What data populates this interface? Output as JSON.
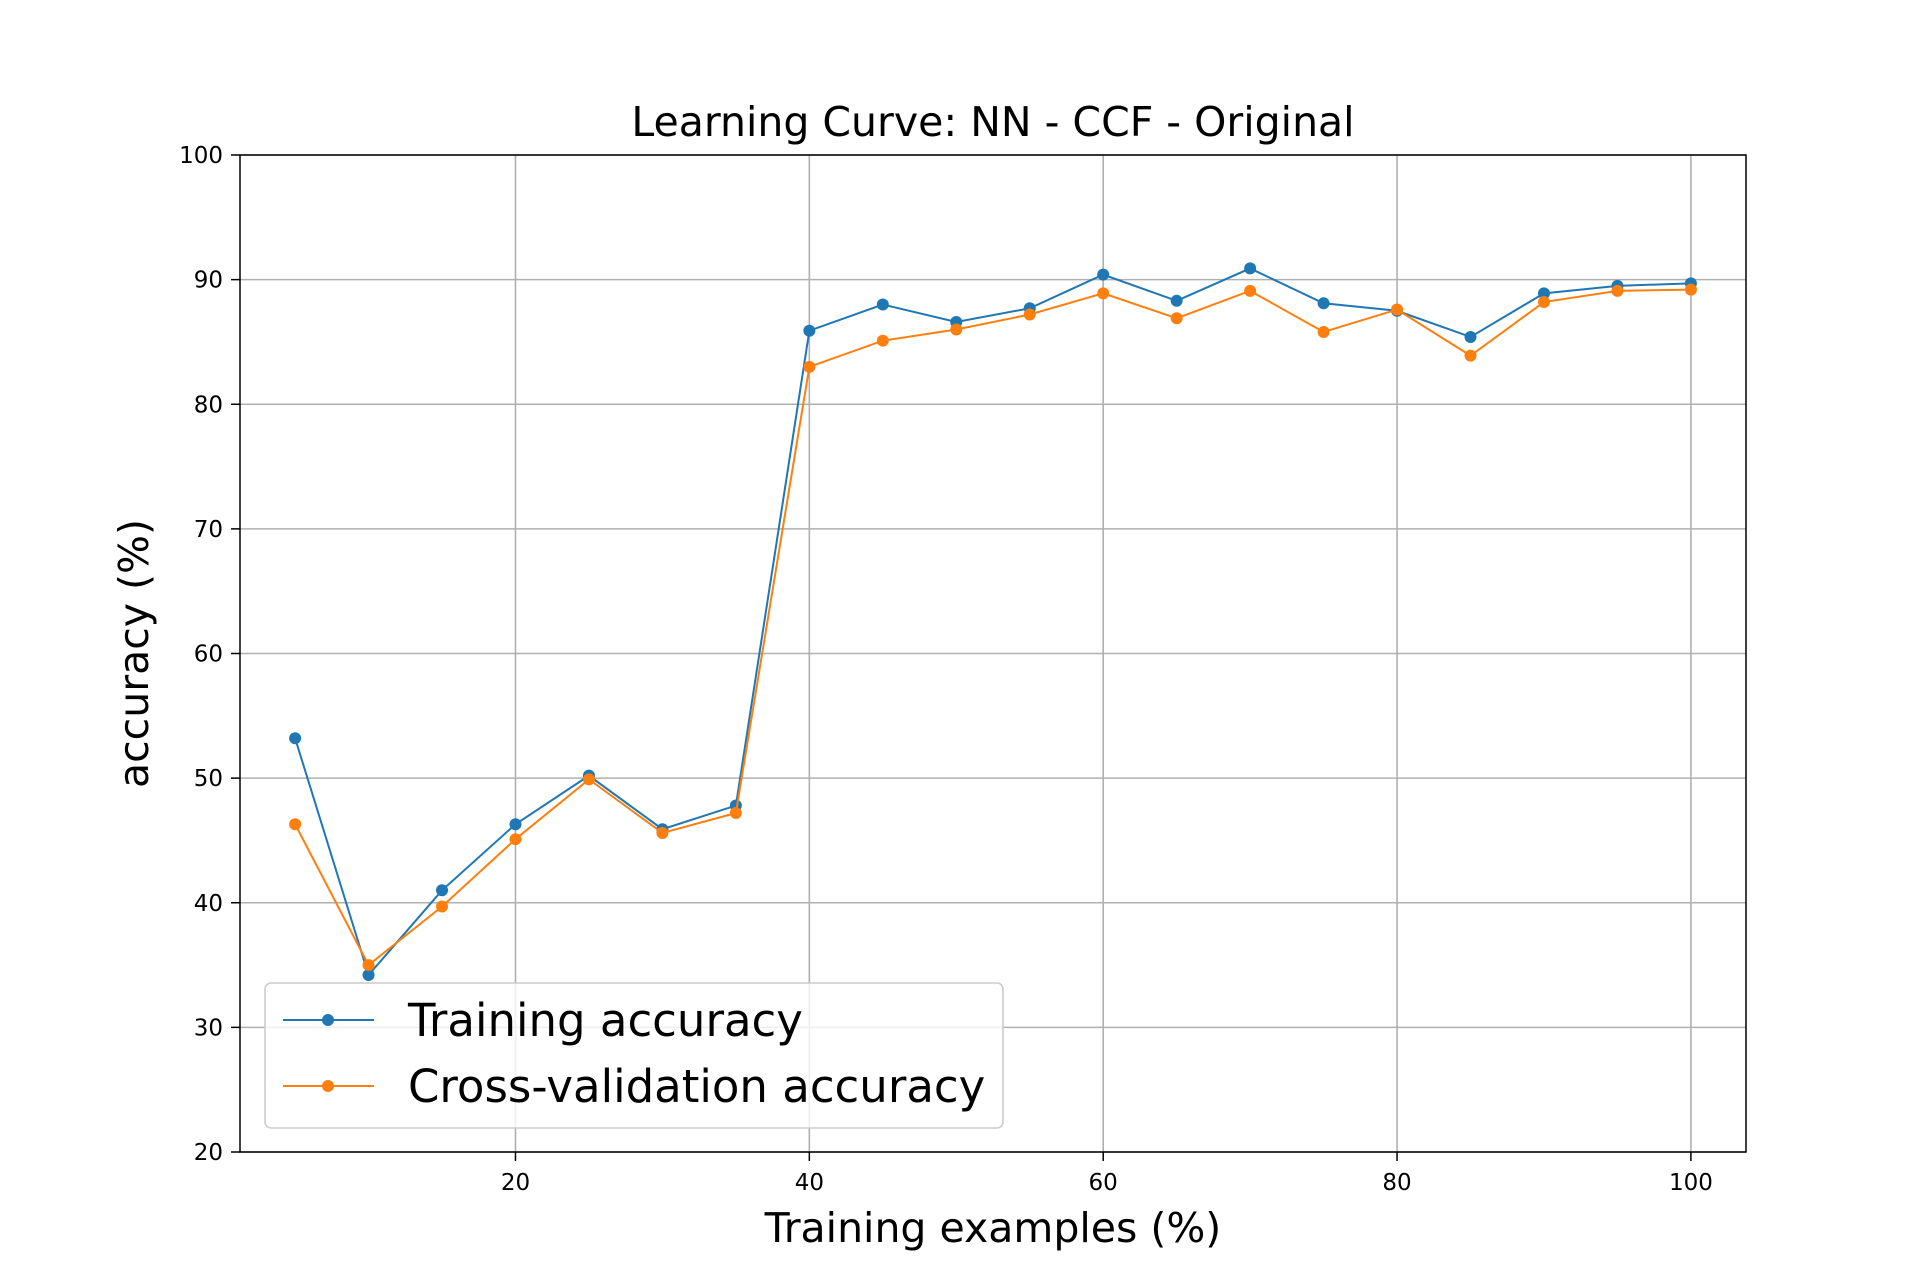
{
  "chart_data": {
    "type": "line",
    "title": "Learning Curve: NN - CCF - Original",
    "xlabel": "Training examples (%)",
    "ylabel": "accuracy (%)",
    "xlim": [
      1.25,
      103.75
    ],
    "ylim": [
      20,
      100
    ],
    "xticks": [
      20,
      40,
      60,
      80,
      100
    ],
    "yticks": [
      20,
      30,
      40,
      50,
      60,
      70,
      80,
      90,
      100
    ],
    "xtick_labels": [
      "20",
      "40",
      "60",
      "80",
      "100"
    ],
    "ytick_labels": [
      "20",
      "30",
      "40",
      "50",
      "60",
      "70",
      "80",
      "90",
      "100"
    ],
    "grid": true,
    "legend_position": "lower-left",
    "x": [
      5,
      10,
      15,
      20,
      25,
      30,
      35,
      40,
      45,
      50,
      55,
      60,
      65,
      70,
      75,
      80,
      85,
      90,
      95,
      100
    ],
    "series": [
      {
        "name": "Training accuracy",
        "color": "#1f77b4",
        "values": [
          53.2,
          34.2,
          41.0,
          46.3,
          50.2,
          45.9,
          47.8,
          85.9,
          88.0,
          86.6,
          87.7,
          90.4,
          88.3,
          90.9,
          88.1,
          87.5,
          85.4,
          88.9,
          89.5,
          89.7
        ]
      },
      {
        "name": "Cross-validation accuracy",
        "color": "#ff7f0e",
        "values": [
          46.3,
          35.0,
          39.7,
          45.1,
          49.9,
          45.6,
          47.2,
          83.0,
          85.1,
          86.0,
          87.2,
          88.9,
          86.9,
          89.1,
          85.8,
          87.6,
          83.9,
          88.2,
          89.1,
          89.2
        ]
      }
    ]
  }
}
